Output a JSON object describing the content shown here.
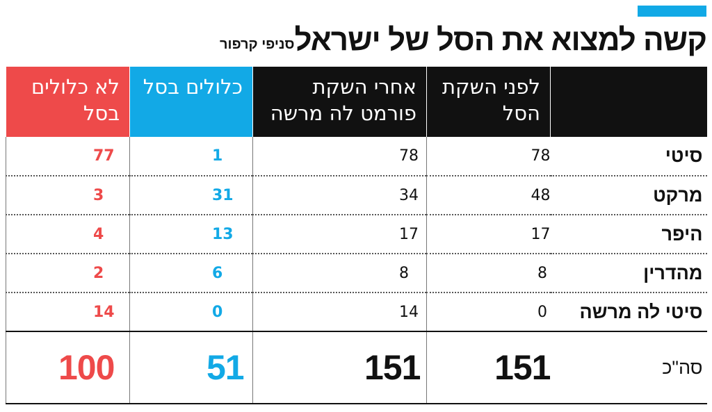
{
  "title": {
    "main": "קשה למצוא את הסל של ישראל",
    "sub": "סניפי קרפור"
  },
  "colors": {
    "accent": "#12a9e6",
    "included": "#12a9e6",
    "excluded": "#ee4a4a",
    "header_dark": "#111111"
  },
  "table": {
    "headers": {
      "before_line1": "לפני השקת",
      "before_line2": "הסל",
      "after_line1": "אחרי השקת",
      "after_line2": "פורמט לה מרשה",
      "included": "כלולים בסל",
      "excluded_line1": "לא כלולים",
      "excluded_line2": "בסל"
    },
    "rows": [
      {
        "label": "סיטי",
        "before": "78",
        "after": "78",
        "included": "1",
        "excluded": "77"
      },
      {
        "label": "מרקט",
        "before": "48",
        "after": "34",
        "included": "31",
        "excluded": "3"
      },
      {
        "label": "היפר",
        "before": "17",
        "after": "17",
        "included": "13",
        "excluded": "4"
      },
      {
        "label": "מהדרין",
        "before": "8",
        "after": "8",
        "included": "6",
        "excluded": "2"
      },
      {
        "label": "סיטי לה מרשה",
        "before": "0",
        "after": "14",
        "included": "0",
        "excluded": "14"
      }
    ],
    "total": {
      "label": "סה\"כ",
      "before": "151",
      "after": "151",
      "included": "51",
      "excluded": "100"
    }
  }
}
